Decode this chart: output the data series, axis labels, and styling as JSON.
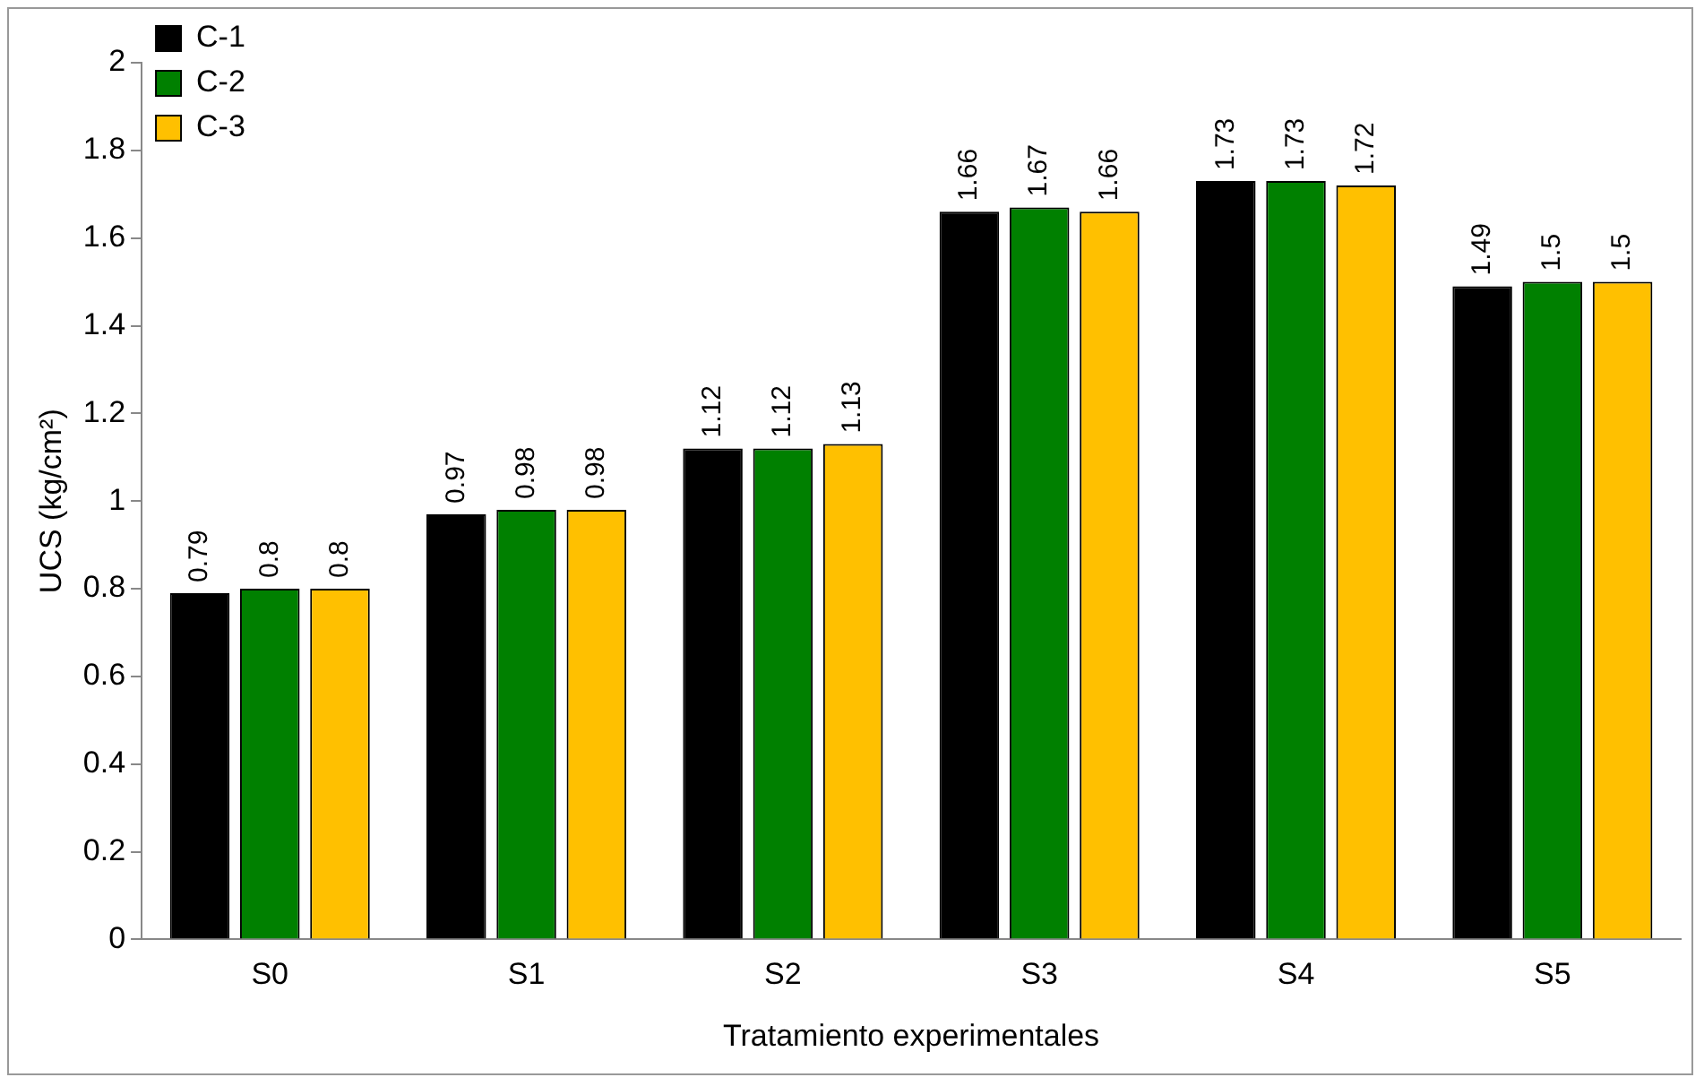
{
  "chart_data": {
    "type": "bar",
    "xlabel": "Tratamiento experimentales",
    "ylabel": "UCS (kg/cm²)",
    "categories": [
      "S0",
      "S1",
      "S2",
      "S3",
      "S4",
      "S5"
    ],
    "series": [
      {
        "name": "C-1",
        "color": "#000000",
        "values": [
          0.79,
          0.97,
          1.12,
          1.66,
          1.73,
          1.49
        ]
      },
      {
        "name": "C-2",
        "color": "#008000",
        "values": [
          0.8,
          0.98,
          1.12,
          1.67,
          1.73,
          1.5
        ]
      },
      {
        "name": "C-3",
        "color": "#ffc000",
        "values": [
          0.8,
          0.98,
          1.13,
          1.66,
          1.72,
          1.5
        ]
      }
    ],
    "ylim": [
      0,
      2
    ],
    "yticks": [
      0,
      0.2,
      0.4,
      0.6,
      0.8,
      1,
      1.2,
      1.4,
      1.6,
      1.8,
      2
    ],
    "grid": false,
    "legend": "top left",
    "data_labels": true
  }
}
